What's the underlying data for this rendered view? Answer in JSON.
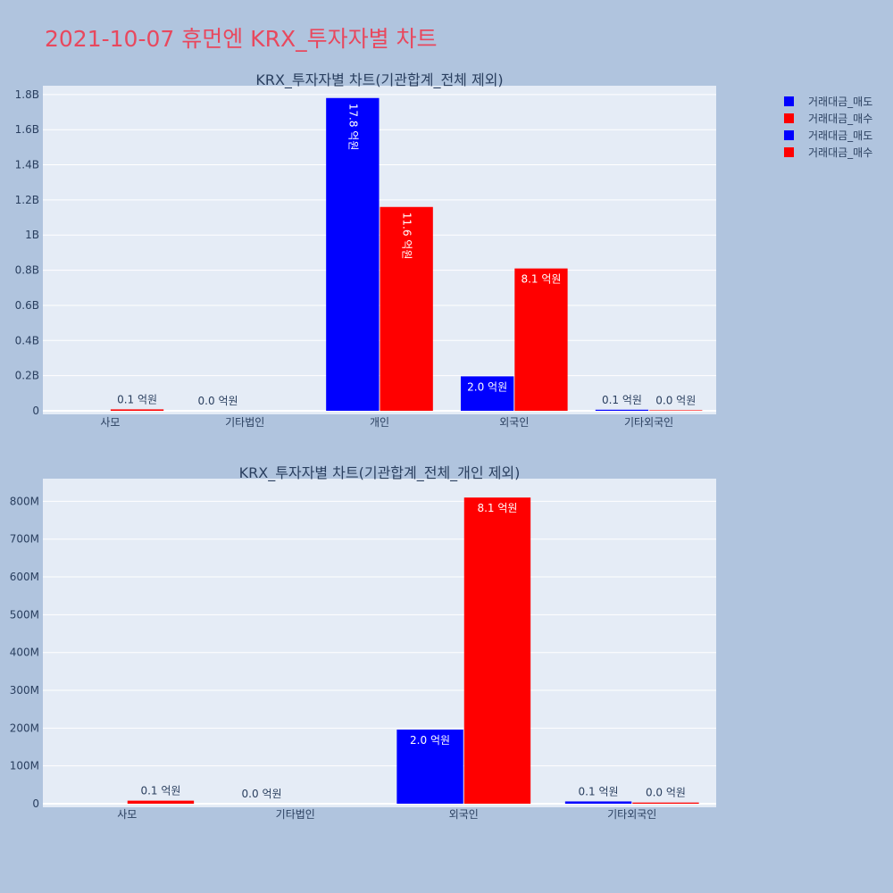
{
  "page": {
    "title": "2021-10-07 휴먼엔 KRX_투자자별 차트"
  },
  "legend": [
    {
      "label": "거래대금_매도",
      "color": "#0000ff"
    },
    {
      "label": "거래대금_매수",
      "color": "#ff0000"
    },
    {
      "label": "거래대금_매도",
      "color": "#0000ff"
    },
    {
      "label": "거래대금_매수",
      "color": "#ff0000"
    }
  ],
  "chart_data": [
    {
      "type": "bar",
      "title": "KRX_투자자별 차트(기관합계_전체 제외)",
      "categories": [
        "사모",
        "기타법인",
        "개인",
        "외국인",
        "기타외국인"
      ],
      "ylim": [
        0,
        1850000000
      ],
      "yticks": [
        0,
        200000000,
        400000000,
        600000000,
        800000000,
        1000000000,
        1200000000,
        1400000000,
        1600000000,
        1800000000
      ],
      "ytick_labels": [
        "0",
        "0.2B",
        "0.4B",
        "0.6B",
        "0.8B",
        "1B",
        "1.2B",
        "1.4B",
        "1.6B",
        "1.8B"
      ],
      "grid": true,
      "series": [
        {
          "name": "거래대금_매도",
          "color": "#0000ff",
          "values": [
            0,
            0,
            1780000000,
            196000000,
            6000000
          ],
          "labels": [
            "",
            "0.0 억원",
            "17.8 억원",
            "2.0 억원",
            "0.1 억원"
          ]
        },
        {
          "name": "거래대금_매수",
          "color": "#ff0000",
          "values": [
            8000000,
            0,
            1160000000,
            810000000,
            3000000
          ],
          "labels": [
            "0.1 억원",
            "",
            "11.6 억원",
            "8.1 억원",
            "0.0 억원"
          ]
        }
      ]
    },
    {
      "type": "bar",
      "title": "KRX_투자자별 차트(기관합계_전체_개인 제외)",
      "categories": [
        "사모",
        "기타법인",
        "외국인",
        "기타외국인"
      ],
      "ylim": [
        0,
        860000000
      ],
      "yticks": [
        0,
        100000000,
        200000000,
        300000000,
        400000000,
        500000000,
        600000000,
        700000000,
        800000000
      ],
      "ytick_labels": [
        "0",
        "100M",
        "200M",
        "300M",
        "400M",
        "500M",
        "600M",
        "700M",
        "800M"
      ],
      "grid": true,
      "series": [
        {
          "name": "거래대금_매도",
          "color": "#0000ff",
          "values": [
            0,
            0,
            196000000,
            6000000
          ],
          "labels": [
            "",
            "0.0 억원",
            "2.0 억원",
            "0.1 억원"
          ]
        },
        {
          "name": "거래대금_매수",
          "color": "#ff0000",
          "values": [
            8000000,
            0,
            810000000,
            3000000
          ],
          "labels": [
            "0.1 억원",
            "",
            "8.1 억원",
            "0.0 억원"
          ]
        }
      ]
    }
  ]
}
